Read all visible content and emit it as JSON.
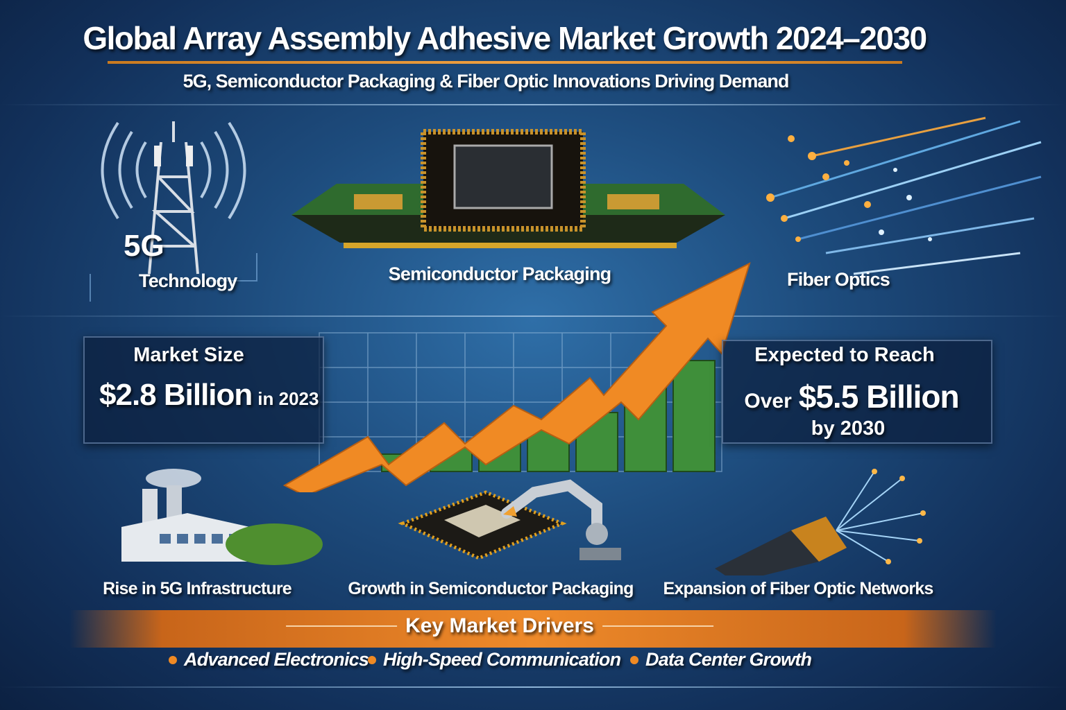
{
  "header": {
    "title": "Global Array Assembly Adhesive Market Growth 2024–2030",
    "subtitle": "5G, Semiconductor Packaging & Fiber Optic Innovations Driving Demand"
  },
  "technologies": [
    {
      "badge": "5G",
      "label": "Technology",
      "icon": "cell-tower-icon"
    },
    {
      "label": "Semiconductor Packaging",
      "icon": "chip-icon"
    },
    {
      "label": "Fiber Optics",
      "icon": "fiber-optics-icon"
    }
  ],
  "market_size": {
    "heading": "Market Size",
    "value": "$2.8 Billion",
    "suffix": "in 2023"
  },
  "forecast": {
    "heading": "Expected to Reach",
    "prefix": "Over",
    "value": "$5.5 Billion",
    "suffix": "by 2030"
  },
  "drivers_illustrations": [
    {
      "label": "Rise in 5G Infrastructure",
      "icon": "factory-icon"
    },
    {
      "label": "Growth in Semiconductor Packaging",
      "icon": "robot-arm-chip-icon"
    },
    {
      "label": "Expansion of Fiber Optic Networks",
      "icon": "fiber-cable-icon"
    }
  ],
  "key_drivers": {
    "title": "Key Market Drivers",
    "items": [
      "Advanced Electronics",
      "High-Speed Communication",
      "Data Center Growth"
    ]
  },
  "colors": {
    "accent": "#f08a24",
    "background": "#1d4b7c",
    "bar": "#3f8f3a"
  }
}
